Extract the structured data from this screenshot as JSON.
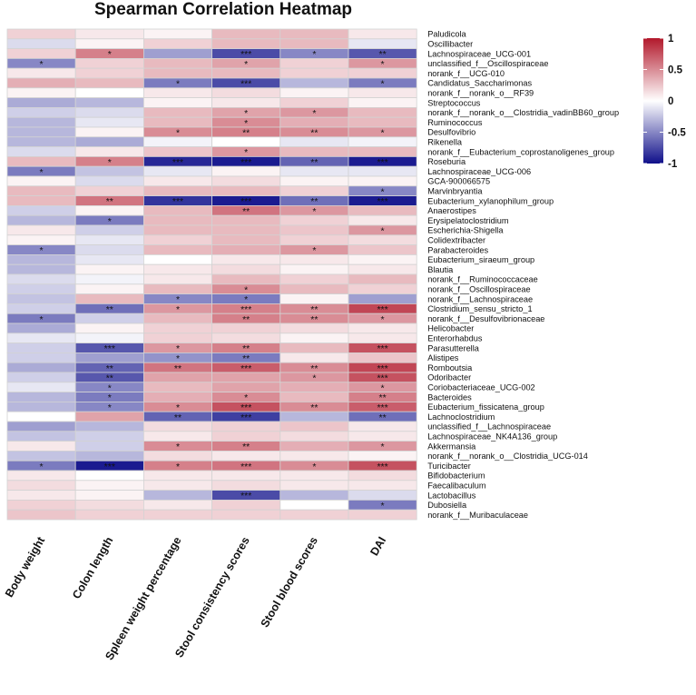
{
  "chart_data": {
    "type": "heatmap",
    "title": "Spearman Correlation Heatmap",
    "columns": [
      "Body weight",
      "Colon length",
      "Spleen weight percentage",
      "Stool consistency scores",
      "Stool blood scores",
      "DAI"
    ],
    "rows": [
      "Paludicola",
      "Oscillibacter",
      "Lachnospiraceae_UCG-001",
      "unclassified_f__Oscillospiraceae",
      "norank_f__UCG-010",
      "Candidatus_Saccharimonas",
      "norank_f__norank_o__RF39",
      "Streptococcus",
      "norank_f__norank_o__Clostridia_vadinBB60_group",
      "Ruminococcus",
      "Desulfovibrio",
      "Rikenella",
      "norank_f__Eubacterium_coprostanoligenes_group",
      "Roseburia",
      "Lachnospiraceae_UCG-006",
      "GCA-900066575",
      "Marvinbryantia",
      "Eubacterium_xylanophilum_group",
      "Anaerostipes",
      "Erysipelatoclostridium",
      "Escherichia-Shigella",
      "Colidextribacter",
      "Parabacteroides",
      "Eubacterium_siraeum_group",
      "Blautia",
      "norank_f__Ruminococcaceae",
      "norank_f__Oscillospiraceae",
      "norank_f__Lachnospiraceae",
      "Clostridium_sensu_stricto_1",
      "norank_f__Desulfovibrionaceae",
      "Helicobacter",
      "Enterorhabdus",
      "Parasutterella",
      "Alistipes",
      "Romboutsia",
      "Odoribacter",
      "Coriobacteriaceae_UCG-002",
      "Bacteroides",
      "Eubacterium_fissicatena_group",
      "Lachnoclostridium",
      "unclassified_f__Lachnospiraceae",
      "Lachnospiraceae_NK4A136_group",
      "Akkermansia",
      "norank_f__norank_o__Clostridia_UCG-014",
      "Turicibacter",
      "Bifidobacterium",
      "Faecalibaculum",
      "Lactobacillus",
      "Dubosiella",
      "norank_f__Muribaculaceae"
    ],
    "values": [
      [
        0.2,
        0.1,
        0.05,
        0.3,
        0.3,
        0.1
      ],
      [
        -0.15,
        0.05,
        0.2,
        0.3,
        0.3,
        -0.1
      ],
      [
        0.2,
        0.55,
        -0.4,
        -0.75,
        -0.5,
        -0.7
      ],
      [
        -0.5,
        0.2,
        0.3,
        0.4,
        0.2,
        0.45
      ],
      [
        0.1,
        0.2,
        0.3,
        0.3,
        0.2,
        0.2
      ],
      [
        0.35,
        0.3,
        -0.55,
        -0.75,
        -0.3,
        -0.55
      ],
      [
        0.05,
        0.0,
        0.1,
        0.15,
        0.05,
        0.1
      ],
      [
        -0.35,
        -0.3,
        0.05,
        0.1,
        0.2,
        0.05
      ],
      [
        -0.2,
        -0.15,
        0.3,
        0.4,
        0.45,
        0.3
      ],
      [
        -0.3,
        -0.1,
        0.3,
        0.5,
        0.35,
        0.3
      ],
      [
        -0.3,
        0.05,
        0.5,
        0.55,
        0.5,
        0.45
      ],
      [
        -0.3,
        -0.35,
        -0.05,
        0.0,
        -0.1,
        -0.05
      ],
      [
        -0.15,
        0.1,
        0.25,
        0.45,
        0.3,
        0.3
      ],
      [
        0.3,
        0.55,
        -0.9,
        -0.95,
        -0.65,
        -0.95
      ],
      [
        -0.55,
        -0.25,
        -0.1,
        0.05,
        -0.1,
        -0.1
      ],
      [
        0.05,
        -0.15,
        0.1,
        0.15,
        0.05,
        0.05
      ],
      [
        0.3,
        0.2,
        0.3,
        0.3,
        0.2,
        -0.5
      ],
      [
        0.3,
        0.6,
        -0.85,
        -0.95,
        -0.6,
        -0.95
      ],
      [
        -0.2,
        0.05,
        0.3,
        0.6,
        0.45,
        0.3
      ],
      [
        -0.3,
        -0.55,
        0.3,
        0.3,
        0.2,
        0.1
      ],
      [
        0.1,
        -0.2,
        0.3,
        0.3,
        0.25,
        0.45
      ],
      [
        0.05,
        -0.1,
        0.2,
        0.3,
        0.2,
        0.15
      ],
      [
        -0.5,
        -0.15,
        0.3,
        0.35,
        0.45,
        0.25
      ],
      [
        -0.3,
        -0.1,
        0.0,
        0.1,
        0.1,
        0.05
      ],
      [
        -0.3,
        0.05,
        0.1,
        0.15,
        0.05,
        0.1
      ],
      [
        -0.15,
        -0.05,
        0.1,
        0.3,
        0.2,
        0.3
      ],
      [
        -0.2,
        0.05,
        0.3,
        0.5,
        0.3,
        0.2
      ],
      [
        -0.25,
        0.3,
        -0.5,
        -0.55,
        0.05,
        -0.4
      ],
      [
        -0.2,
        -0.6,
        0.45,
        0.55,
        0.5,
        0.8
      ],
      [
        -0.55,
        -0.2,
        0.3,
        0.55,
        0.5,
        0.45
      ],
      [
        -0.35,
        0.05,
        0.2,
        0.2,
        0.15,
        0.1
      ],
      [
        -0.1,
        -0.05,
        0.2,
        0.15,
        0.05,
        0.1
      ],
      [
        -0.2,
        -0.7,
        0.45,
        0.55,
        0.3,
        0.75
      ],
      [
        -0.2,
        -0.4,
        -0.45,
        -0.55,
        0.1,
        0.25
      ],
      [
        -0.35,
        -0.65,
        0.6,
        0.7,
        0.5,
        0.8
      ],
      [
        -0.2,
        -0.7,
        0.4,
        0.4,
        0.45,
        0.75
      ],
      [
        -0.1,
        -0.5,
        0.3,
        0.4,
        0.35,
        0.45
      ],
      [
        -0.3,
        -0.55,
        0.35,
        0.5,
        0.3,
        0.55
      ],
      [
        -0.3,
        -0.5,
        0.5,
        0.75,
        0.5,
        0.7
      ],
      [
        0.0,
        0.4,
        -0.65,
        -0.8,
        -0.3,
        -0.6
      ],
      [
        -0.4,
        -0.3,
        0.15,
        0.2,
        0.25,
        0.1
      ],
      [
        -0.25,
        -0.2,
        0.1,
        0.2,
        0.15,
        0.1
      ],
      [
        0.1,
        -0.2,
        0.5,
        0.55,
        0.35,
        0.45
      ],
      [
        -0.25,
        -0.3,
        0.15,
        0.1,
        0.1,
        0.05
      ],
      [
        -0.55,
        -0.95,
        0.55,
        0.6,
        0.5,
        0.75
      ],
      [
        0.1,
        0.0,
        0.1,
        0.1,
        0.1,
        0.15
      ],
      [
        0.15,
        0.05,
        0.1,
        0.15,
        0.1,
        0.1
      ],
      [
        0.1,
        0.05,
        -0.3,
        -0.75,
        -0.3,
        -0.15
      ],
      [
        0.2,
        0.15,
        0.1,
        0.2,
        0.0,
        -0.55
      ],
      [
        0.25,
        0.2,
        0.2,
        0.2,
        0.2,
        0.2
      ]
    ],
    "significance": [
      [
        "",
        "",
        "",
        "",
        "",
        ""
      ],
      [
        "",
        "",
        "",
        "",
        "",
        ""
      ],
      [
        "",
        "*",
        "",
        "***",
        "*",
        "**"
      ],
      [
        "*",
        "",
        "",
        "*",
        "",
        "*"
      ],
      [
        "",
        "",
        "",
        "",
        "",
        ""
      ],
      [
        "",
        "",
        "*",
        "***",
        "",
        "*"
      ],
      [
        "",
        "",
        "",
        "",
        "",
        ""
      ],
      [
        "",
        "",
        "",
        "",
        "",
        ""
      ],
      [
        "",
        "",
        "",
        "*",
        "*",
        ""
      ],
      [
        "",
        "",
        "",
        "*",
        "",
        ""
      ],
      [
        "",
        "",
        "*",
        "**",
        "**",
        "*"
      ],
      [
        "",
        "",
        "",
        "",
        "",
        ""
      ],
      [
        "",
        "",
        "",
        "*",
        "",
        ""
      ],
      [
        "",
        "*",
        "***",
        "***",
        "**",
        "***"
      ],
      [
        "*",
        "",
        "",
        "",
        "",
        ""
      ],
      [
        "",
        "",
        "",
        "",
        "",
        ""
      ],
      [
        "",
        "",
        "",
        "",
        "",
        "*"
      ],
      [
        "",
        "**",
        "***",
        "***",
        "**",
        "***"
      ],
      [
        "",
        "",
        "",
        "**",
        "*",
        ""
      ],
      [
        "",
        "*",
        "",
        "",
        "",
        ""
      ],
      [
        "",
        "",
        "",
        "",
        "",
        "*"
      ],
      [
        "",
        "",
        "",
        "",
        "",
        ""
      ],
      [
        "*",
        "",
        "",
        "",
        "*",
        ""
      ],
      [
        "",
        "",
        "",
        "",
        "",
        ""
      ],
      [
        "",
        "",
        "",
        "",
        "",
        ""
      ],
      [
        "",
        "",
        "",
        "",
        "",
        ""
      ],
      [
        "",
        "",
        "",
        "*",
        "",
        ""
      ],
      [
        "",
        "",
        "*",
        "*",
        "",
        ""
      ],
      [
        "",
        "**",
        "*",
        "***",
        "**",
        "***"
      ],
      [
        "*",
        "",
        "",
        "**",
        "**",
        "*"
      ],
      [
        "",
        "",
        "",
        "",
        "",
        ""
      ],
      [
        "",
        "",
        "",
        "",
        "",
        ""
      ],
      [
        "",
        "***",
        "*",
        "**",
        "",
        "***"
      ],
      [
        "",
        "",
        "*",
        "**",
        "",
        ""
      ],
      [
        "",
        "**",
        "**",
        "***",
        "**",
        "***"
      ],
      [
        "",
        "**",
        "",
        "",
        "*",
        "***"
      ],
      [
        "",
        "*",
        "",
        "",
        "",
        "*"
      ],
      [
        "",
        "*",
        "",
        "*",
        "",
        "**"
      ],
      [
        "",
        "*",
        "*",
        "***",
        "**",
        "***"
      ],
      [
        "",
        "",
        "**",
        "***",
        "",
        "**"
      ],
      [
        "",
        "",
        "",
        "",
        "",
        ""
      ],
      [
        "",
        "",
        "",
        "",
        "",
        ""
      ],
      [
        "",
        "",
        "*",
        "**",
        "",
        "*"
      ],
      [
        "",
        "",
        "",
        "",
        "",
        ""
      ],
      [
        "*",
        "***",
        "*",
        "***",
        "*",
        "***"
      ],
      [
        "",
        "",
        "",
        "",
        "",
        ""
      ],
      [
        "",
        "",
        "",
        "",
        "",
        ""
      ],
      [
        "",
        "",
        "",
        "***",
        "",
        ""
      ],
      [
        "",
        "",
        "",
        "",
        "",
        "*"
      ],
      [
        "",
        "",
        "",
        "",
        "",
        ""
      ]
    ],
    "colorbar": {
      "range": [
        -1,
        1
      ],
      "ticks": [
        "1",
        "0.5",
        "0",
        "-0.5",
        "-1"
      ],
      "tick_values": [
        1,
        0.5,
        0,
        -0.5,
        -1
      ],
      "low_color": "#0f0f8a",
      "mid_color": "#ffffff",
      "high_color": "#b2182b"
    },
    "legend_position": "right"
  }
}
